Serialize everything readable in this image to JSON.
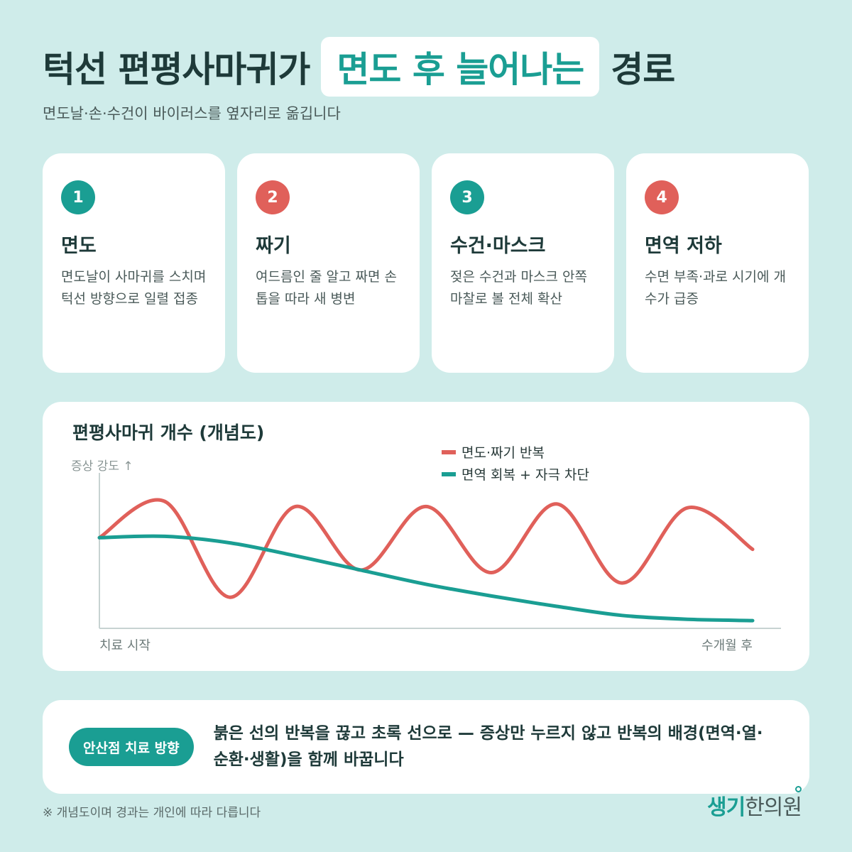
{
  "header": {
    "title_before": "턱선 편평사마귀가",
    "title_highlight": "면도 후 늘어나는",
    "title_after": "경로",
    "subtitle": "면도날·손·수건이 바이러스를 옆자리로 옮깁니다"
  },
  "cards": [
    {
      "number": "1",
      "title": "면도",
      "desc": "면도날이 사마귀를 스치며 턱선 방향으로 일렬 접종",
      "color": "#1a9e93"
    },
    {
      "number": "2",
      "title": "짜기",
      "desc": "여드름인 줄 알고 짜면 손톱을 따라 새 병변",
      "color": "#e0605a"
    },
    {
      "number": "3",
      "title": "수건·마스크",
      "desc": "젖은 수건과 마스크 안쪽 마찰로 볼 전체 확산",
      "color": "#1a9e93"
    },
    {
      "number": "4",
      "title": "면역 저하",
      "desc": "수면 부족·과로 시기에 개수가 급증",
      "color": "#e0605a"
    }
  ],
  "chart_data": {
    "type": "line",
    "title": "편평사마귀 개수 (개념도)",
    "ylabel": "증상 강도 ↑",
    "x_start_label": "치료 시작",
    "x_end_label": "수개월 후",
    "x": [
      0,
      0.1,
      0.2,
      0.3,
      0.4,
      0.5,
      0.6,
      0.7,
      0.8,
      0.9,
      1.0
    ],
    "series": [
      {
        "name": "면도·짜기 반복",
        "color": "#e0605a",
        "values": [
          0.7,
          0.98,
          0.24,
          0.94,
          0.45,
          0.94,
          0.43,
          0.96,
          0.35,
          0.93,
          0.61
        ]
      },
      {
        "name": "면역 회복 + 자극 차단",
        "color": "#1a9e93",
        "values": [
          0.7,
          0.71,
          0.66,
          0.56,
          0.45,
          0.34,
          0.25,
          0.17,
          0.1,
          0.07,
          0.06
        ]
      }
    ],
    "ylim": [
      0,
      1.2
    ],
    "grid": false,
    "legend": "top-center"
  },
  "bottom": {
    "pill_label": "안산점 치료 방향",
    "text": "붉은 선의 반복을 끊고 초록 선으로 — 증상만 누르지 않고 반복의 배경(면역·열·순환·생활)을 함께 바꿉니다"
  },
  "footnote": "※ 개념도이며 경과는 개인에 따라 다릅니다",
  "logo": {
    "text_accent": "생기",
    "text_rest": "한의원"
  }
}
